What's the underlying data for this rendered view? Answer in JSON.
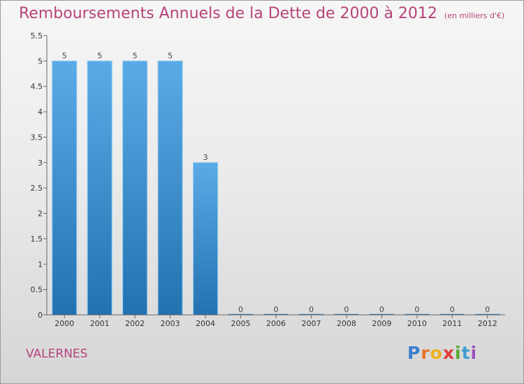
{
  "header": {
    "title": "Remboursements Annuels de la Dette de 2000 à 2012",
    "subtitle": "(en milliers d'€)"
  },
  "commune": "VALERNES",
  "logo": {
    "letters": [
      "P",
      "r",
      "o",
      "x",
      "i",
      "t",
      "i"
    ],
    "colors": [
      "#3a7fd0",
      "#e8732a",
      "#f0b020",
      "#e03a3a",
      "#55aa33",
      "#3a9fd0",
      "#9955bb"
    ]
  },
  "colors": {
    "bar_top": "#5aabe6",
    "bar_bottom": "#2272b2",
    "title": "#b5447a"
  },
  "chart_data": {
    "type": "bar",
    "categories": [
      "2000",
      "2001",
      "2002",
      "2003",
      "2004",
      "2005",
      "2006",
      "2007",
      "2008",
      "2009",
      "2010",
      "2011",
      "2012"
    ],
    "values": [
      5,
      5,
      5,
      5,
      3,
      0,
      0,
      0,
      0,
      0,
      0,
      0,
      0
    ],
    "value_labels": [
      "5",
      "5",
      "5",
      "5",
      "3",
      "0",
      "0",
      "0",
      "0",
      "0",
      "0",
      "0",
      "0"
    ],
    "yticks": [
      0,
      0.5,
      1,
      1.5,
      2,
      2.5,
      3,
      3.5,
      4,
      4.5,
      5,
      5.5
    ],
    "ytick_labels": [
      "0",
      "0.5",
      "1",
      "1.5",
      "2",
      "2.5",
      "3",
      "3.5",
      "4",
      "4.5",
      "5",
      "5.5"
    ],
    "ylim": [
      0,
      5.5
    ],
    "title": "Remboursements Annuels de la Dette de 2000 à 2012",
    "xlabel": "",
    "ylabel": "",
    "grid": false,
    "legend": "none"
  }
}
